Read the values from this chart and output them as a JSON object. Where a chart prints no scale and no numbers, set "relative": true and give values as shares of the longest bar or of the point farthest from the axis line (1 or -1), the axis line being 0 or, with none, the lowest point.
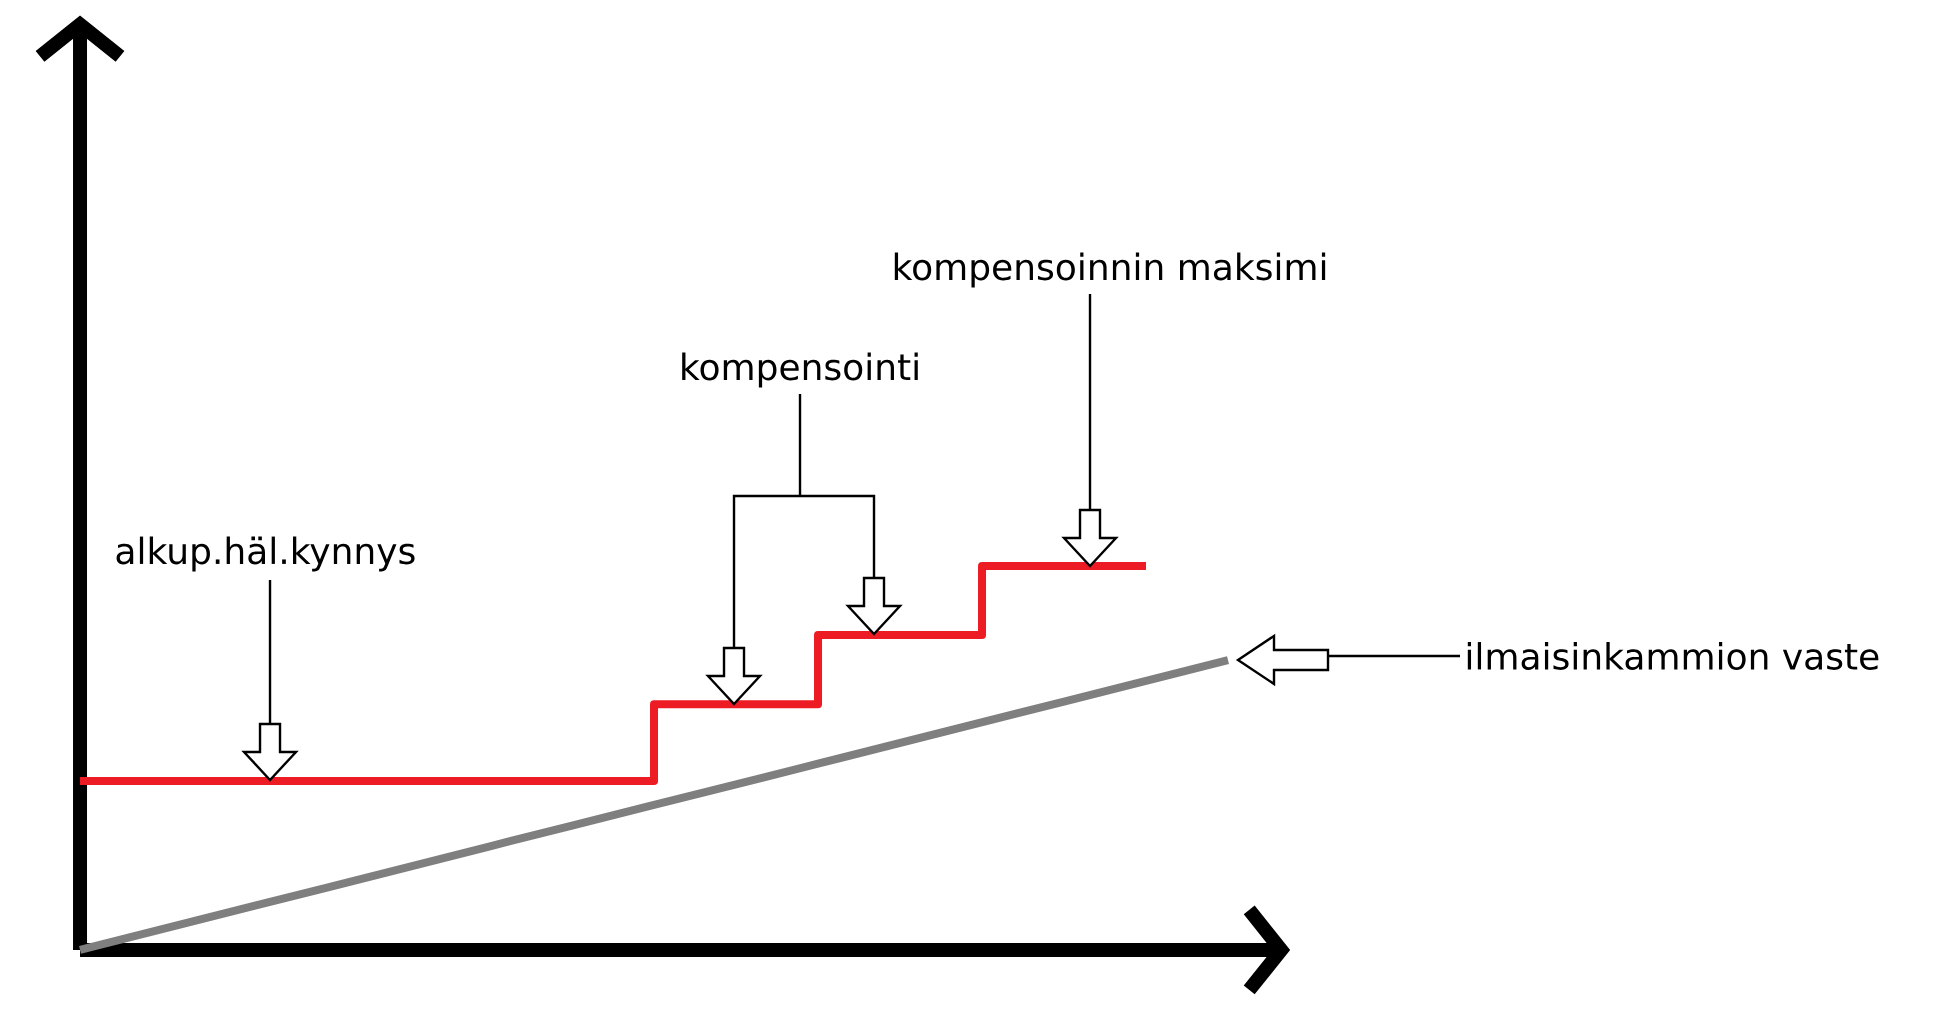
{
  "chart_data": {
    "type": "step",
    "relative": true,
    "categories": [
      null,
      null,
      null,
      null,
      null,
      null,
      null,
      null,
      null,
      null,
      null,
      null,
      null,
      null,
      null
    ],
    "series": [
      {
        "color": "#ed1c24",
        "values": [
          0.44,
          0.44,
          0.44,
          0.44,
          0.44,
          0.44,
          0.44,
          0.64,
          0.64,
          0.82,
          0.82,
          1,
          1,
          1,
          null
        ]
      },
      {
        "type": "line",
        "color": "#7f7f7f",
        "values": [
          0,
          0.054,
          0.108,
          0.162,
          0.216,
          0.27,
          0.324,
          0.378,
          0.431,
          0.485,
          0.539,
          0.593,
          0.647,
          0.701,
          0.755
        ]
      }
    ],
    "annotations": [
      "alkup.häl.kynnys",
      "kompensointi",
      "kompensoinnin maksimi",
      "ilmaisinkammion vaste"
    ]
  }
}
